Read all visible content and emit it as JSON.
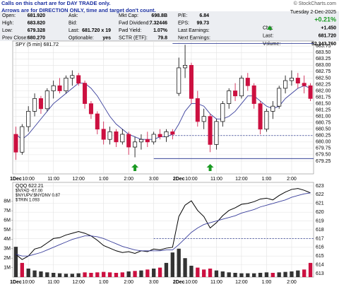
{
  "quote": {
    "notice": [
      "Calls on this chart are for DAY TRADE only.",
      "Arrows are for DIRECTION ONLY, time and target don't count."
    ],
    "source": "© StockCharts.com",
    "left": [
      [
        "Open:",
        "681.920",
        "Ask:",
        null,
        "Mkt Cap:",
        "698.8B",
        "P/E:",
        "6.84"
      ],
      [
        "High:",
        "683.820",
        "Bid:",
        null,
        "Fwd Dividend:",
        "7.32446",
        "EPS:",
        "99.73"
      ],
      [
        "Low:",
        "679.328",
        "Last:",
        "681.720 x 19",
        "Fwd Yield:",
        "1.07%",
        "Last Earnings:",
        null
      ],
      [
        "Prev Close:",
        "680.270",
        "Optionable:",
        "yes",
        "SCTR (ETF):",
        "79.8",
        "Next Earnings:",
        null
      ]
    ],
    "right": [
      [
        "Tuesday 2-Dec-2025"
      ],
      [
        "+0.21%"
      ],
      [
        "Chg:",
        "+1.450"
      ],
      [
        "Last:",
        "681.720"
      ],
      [
        "Volume:",
        "52,343,760"
      ]
    ]
  },
  "chart_data": [
    {
      "type": "candlestick",
      "title": "SPY (5 min) 681.72",
      "categories": [
        "1Dec",
        null,
        "10:00",
        null,
        null,
        null,
        "11:00",
        null,
        null,
        null,
        "12:00",
        null,
        null,
        null,
        "1:00",
        null,
        null,
        null,
        "2:00",
        null,
        null,
        null,
        "3:00",
        null,
        null,
        null,
        "2Dec",
        null,
        "10:00",
        null,
        null,
        null,
        "11:00",
        null,
        null,
        null,
        "12:00",
        null,
        null,
        null,
        "1:00",
        null,
        null,
        null,
        "2:00",
        null,
        null,
        null
      ],
      "open": [
        680.3,
        679.6,
        680.6,
        681.2,
        681.7,
        681.3,
        682.0,
        682.2,
        682.0,
        682.5,
        682.6,
        682.3,
        681.5,
        681.1,
        680.5,
        680.1,
        680.4,
        680.0,
        680.3,
        679.8,
        680.0,
        680.1,
        680.0,
        680.3,
        680.2,
        680.4,
        681.9,
        682.9,
        683.0,
        681.7,
        680.8,
        681.0,
        679.9,
        680.8,
        681.5,
        682.0,
        681.8,
        682.5,
        682.2,
        681.5,
        680.5,
        681.2,
        681.4,
        682.1,
        682.4,
        682.5,
        682.3,
        682.2
      ],
      "high": [
        680.6,
        680.7,
        681.4,
        681.9,
        681.8,
        682.1,
        682.4,
        682.5,
        682.6,
        682.8,
        682.7,
        682.4,
        681.6,
        681.2,
        680.8,
        680.6,
        680.5,
        680.5,
        680.4,
        680.2,
        680.3,
        680.4,
        680.4,
        680.5,
        680.5,
        680.5,
        683.3,
        683.8,
        683.1,
        682.0,
        681.3,
        681.1,
        680.9,
        681.6,
        682.1,
        682.3,
        682.6,
        682.7,
        682.3,
        681.6,
        681.3,
        681.6,
        682.2,
        682.6,
        682.8,
        682.7,
        682.6,
        682.3
      ],
      "low": [
        679.3,
        679.5,
        680.4,
        681.0,
        681.1,
        681.2,
        681.7,
        681.9,
        681.9,
        682.2,
        682.2,
        681.3,
        680.9,
        680.3,
        679.9,
        679.9,
        679.8,
        679.9,
        679.5,
        679.4,
        679.7,
        679.8,
        679.9,
        680.1,
        680.0,
        680.1,
        681.8,
        682.5,
        681.5,
        680.6,
        680.5,
        679.6,
        679.7,
        680.6,
        681.3,
        681.6,
        681.7,
        682.0,
        681.3,
        680.3,
        680.4,
        680.9,
        681.3,
        681.9,
        682.2,
        682.1,
        681.9,
        681.6
      ],
      "close": [
        679.6,
        680.6,
        681.2,
        681.7,
        681.3,
        682.0,
        682.2,
        682.0,
        682.5,
        682.6,
        682.3,
        681.5,
        681.1,
        680.5,
        680.1,
        680.4,
        680.0,
        680.3,
        679.8,
        680.0,
        680.1,
        680.0,
        680.3,
        680.2,
        680.4,
        680.3,
        682.9,
        683.0,
        681.7,
        680.8,
        681.0,
        679.9,
        680.8,
        681.5,
        682.0,
        681.8,
        682.5,
        682.2,
        681.5,
        680.5,
        681.2,
        681.4,
        682.1,
        682.4,
        682.5,
        682.3,
        682.2,
        681.7
      ],
      "color_up": "#000000",
      "color_down": "#cc1040",
      "overlays": [
        {
          "color": "#3a3f9c",
          "values": [
            680.3,
            680.1,
            680.3,
            680.6,
            680.9,
            681.2,
            681.5,
            681.7,
            681.9,
            682.1,
            682.3,
            682.3,
            682.1,
            681.8,
            681.4,
            681.0,
            680.7,
            680.5,
            680.3,
            680.2,
            680.1,
            680.1,
            680.1,
            680.2,
            680.2,
            680.3,
            680.7,
            681.2,
            681.5,
            681.5,
            681.4,
            681.1,
            680.9,
            680.9,
            681.0,
            681.2,
            681.5,
            681.8,
            681.8,
            681.6,
            681.4,
            681.3,
            681.4,
            681.7,
            681.9,
            682.1,
            682.2,
            682.1
          ]
        }
      ],
      "levels": [
        {
          "value": 683.85,
          "start": 25,
          "dashed": false,
          "color": "#1c2a8a"
        },
        {
          "value": 680.25,
          "start": 25,
          "dashed": true,
          "color": "#1c2a8a"
        },
        {
          "value": 679.35,
          "start": 22,
          "dashed": false,
          "color": "#1c2a8a"
        }
      ],
      "arrows": [
        {
          "at": 19,
          "value": 679.0,
          "color": "#1a9a22"
        },
        {
          "at": 31,
          "value": 679.0,
          "color": "#1a9a22"
        }
      ],
      "ylim": [
        678.75,
        683.95
      ],
      "yticks": [
        683.75,
        {
          "value": 683.5,
          "label": "683.50"
        },
        683.25,
        {
          "value": 683,
          "label": "683.00"
        },
        682.75,
        {
          "value": 682.5,
          "label": "682.50"
        },
        682.25,
        {
          "value": 682,
          "label": "682.00"
        },
        681.75,
        {
          "value": 681.5,
          "label": "681.50"
        },
        681.25,
        {
          "value": 681,
          "label": "681.00"
        },
        680.75,
        {
          "value": 680.5,
          "label": "680.50"
        },
        680.25,
        {
          "value": 680,
          "label": "680.00"
        },
        679.75,
        {
          "value": 679.5,
          "label": "679.50"
        },
        679.25
      ],
      "grid": true
    },
    {
      "type": "line",
      "title": "QQQ 622.21",
      "notes": [
        "$NYAD -67.00",
        "$NYUPV:$NYDNV 0.87",
        "$TRIN 1.093"
      ],
      "categories": [
        "1Dec",
        null,
        "10:00",
        null,
        null,
        null,
        "11:00",
        null,
        null,
        null,
        "12:00",
        null,
        null,
        null,
        "1:00",
        null,
        null,
        null,
        "2:00",
        null,
        null,
        null,
        "3:00",
        null,
        null,
        null,
        "2Dec",
        null,
        "10:00",
        null,
        null,
        null,
        "11:00",
        null,
        null,
        null,
        "12:00",
        null,
        null,
        null,
        "1:00",
        null,
        null,
        null,
        "2:00",
        null,
        null,
        null
      ],
      "series": [
        {
          "type": "line",
          "color": "#000000",
          "values": [
            615.2,
            614.6,
            615.0,
            615.8,
            616.0,
            616.5,
            617.0,
            617.1,
            617.4,
            617.6,
            617.8,
            617.6,
            617.3,
            616.8,
            616.2,
            615.9,
            615.6,
            615.4,
            615.5,
            615.3,
            615.6,
            615.5,
            615.8,
            615.7,
            615.9,
            616.0,
            619.5,
            620.8,
            621.3,
            620.2,
            619.5,
            618.2,
            618.8,
            619.6,
            620.2,
            620.5,
            620.9,
            621.0,
            621.2,
            621.5,
            621.6,
            621.4,
            621.9,
            622.3,
            622.6,
            622.7,
            622.5,
            622.2
          ]
        },
        {
          "type": "line",
          "color": "#3a3f9c",
          "values": [
            615.2,
            615.0,
            615.0,
            615.2,
            615.4,
            615.7,
            616.0,
            616.3,
            616.6,
            616.9,
            617.1,
            617.3,
            617.3,
            617.2,
            617.0,
            616.7,
            616.4,
            616.1,
            615.9,
            615.7,
            615.6,
            615.6,
            615.6,
            615.6,
            615.7,
            615.7,
            616.3,
            617.0,
            617.7,
            618.2,
            618.6,
            618.8,
            619.0,
            619.2,
            619.4,
            619.6,
            619.9,
            620.1,
            620.3,
            620.6,
            620.8,
            621.0,
            621.2,
            621.4,
            621.7,
            621.9,
            622.1,
            622.2
          ]
        },
        {
          "type": "bar",
          "axis": "y2",
          "color_up": "#333333",
          "color_down": "#cc1040",
          "values": [
            3200000,
            1500000,
            900000,
            700000,
            600000,
            500000,
            450000,
            400000,
            350000,
            350000,
            400000,
            500000,
            450000,
            500000,
            550000,
            500000,
            450000,
            500000,
            600000,
            650000,
            700000,
            800000,
            900000,
            1000000,
            1500000,
            2600000,
            3000000,
            2000000,
            1200000,
            1000000,
            800000,
            900000,
            700000,
            600000,
            500000,
            450000,
            400000,
            400000,
            400000,
            450000,
            500000,
            450000,
            500000,
            550000,
            600000,
            700000,
            800000,
            1500000
          ]
        }
      ],
      "levels": [
        {
          "value": 617,
          "start": 22,
          "dashed": true,
          "color": "#1c2a8a"
        }
      ],
      "ylim": [
        612.6,
        623.4
      ],
      "yticks": [
        623,
        622,
        621,
        620,
        619,
        618,
        617,
        616,
        615,
        614,
        613
      ],
      "y2lim": [
        0,
        10000000
      ],
      "y2ticks": [
        {
          "value": 1000000,
          "label": "1M"
        },
        {
          "value": 2000000,
          "label": "2M"
        },
        {
          "value": 3000000,
          "label": "3M"
        },
        {
          "value": 4000000,
          "label": "4M"
        },
        {
          "value": 5000000,
          "label": "5M"
        },
        {
          "value": 6000000,
          "label": "6M"
        },
        {
          "value": 7000000,
          "label": "7M"
        },
        {
          "value": 8000000,
          "label": "8M"
        }
      ],
      "grid": true
    }
  ]
}
